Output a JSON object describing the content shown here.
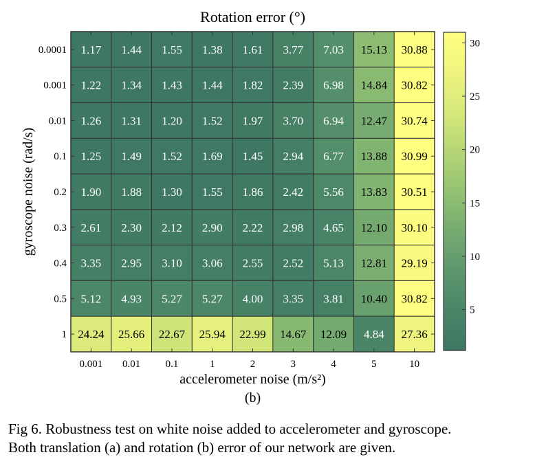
{
  "chart_data": {
    "type": "heatmap",
    "title": "Rotation error (°)",
    "xlabel": "accelerometer noise (m/s²)",
    "ylabel": "gyroscope noise (rad/s)",
    "x_categories": [
      "0.001",
      "0.01",
      "0.1",
      "1",
      "2",
      "3",
      "4",
      "5",
      "10"
    ],
    "y_categories": [
      "0.0001",
      "0.001",
      "0.01",
      "0.1",
      "0.2",
      "0.3",
      "0.4",
      "0.5",
      "1"
    ],
    "values": [
      [
        1.17,
        1.44,
        1.55,
        1.38,
        1.61,
        3.77,
        7.03,
        15.13,
        30.88
      ],
      [
        1.22,
        1.34,
        1.43,
        1.44,
        1.82,
        2.39,
        6.98,
        14.84,
        30.82
      ],
      [
        1.26,
        1.31,
        1.2,
        1.52,
        1.97,
        3.7,
        6.94,
        12.47,
        30.74
      ],
      [
        1.25,
        1.49,
        1.52,
        1.69,
        1.45,
        2.94,
        6.77,
        13.88,
        30.99
      ],
      [
        1.9,
        1.88,
        1.3,
        1.55,
        1.86,
        2.42,
        5.56,
        13.83,
        30.51
      ],
      [
        2.61,
        2.3,
        2.12,
        2.9,
        2.22,
        2.98,
        4.65,
        12.1,
        30.1
      ],
      [
        3.35,
        2.95,
        3.1,
        3.06,
        2.55,
        2.52,
        5.13,
        12.81,
        29.19
      ],
      [
        5.12,
        4.93,
        5.27,
        5.27,
        4.0,
        3.35,
        3.81,
        10.4,
        30.82
      ],
      [
        24.24,
        25.66,
        22.67,
        25.94,
        22.99,
        14.67,
        12.09,
        4.84,
        27.36
      ]
    ],
    "colorbar": {
      "range": [
        1.17,
        30.99
      ],
      "ticks": [
        5,
        10,
        15,
        20,
        25,
        30
      ]
    },
    "colormap": [
      "#3e7762",
      "#4a8568",
      "#5c966d",
      "#76ab70",
      "#93c272",
      "#b5d676",
      "#d6e87a",
      "#eef47e",
      "#ffff80"
    ]
  },
  "subfigure_label": "(b)",
  "caption": {
    "line1": "Fig 6. Robustness test on white noise added to accelerometer and gyroscope.",
    "line2": "Both translation (a) and rotation (b) error of our network are given."
  }
}
